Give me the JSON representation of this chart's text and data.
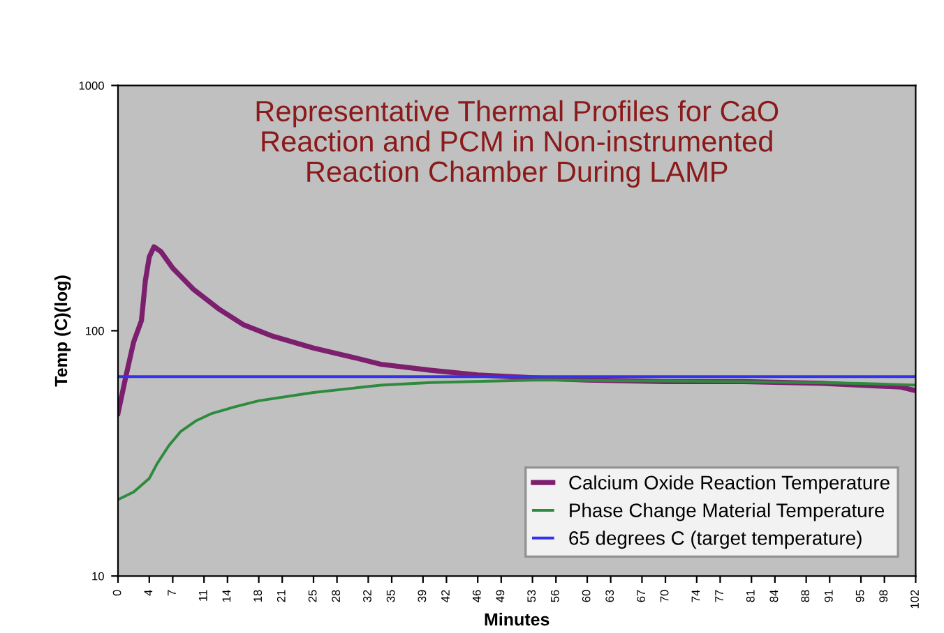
{
  "chart_data": {
    "type": "line",
    "title": "Representative Thermal Profiles for CaO\nReaction and PCM in Non-instrumented\nReaction Chamber During LAMP",
    "xlabel": "Minutes",
    "ylabel": "Temp (C)(log)",
    "log": "y",
    "ylim": [
      10,
      1000
    ],
    "yticks": [
      10,
      100,
      1000
    ],
    "xlim": [
      0,
      102
    ],
    "xticks": [
      0,
      4,
      7,
      11,
      14,
      18,
      21,
      25,
      28,
      32,
      35,
      39,
      42,
      46,
      49,
      53,
      56,
      60,
      63,
      67,
      70,
      74,
      77,
      81,
      84,
      88,
      91,
      95,
      98,
      102
    ],
    "legend": "bottom right",
    "grid": false,
    "series": [
      {
        "name": "Calcium Oxide Reaction Temperature",
        "color": "#7b1f6e",
        "x": [
          0,
          1,
          2,
          3,
          3.5,
          4,
          4.6,
          5.5,
          7,
          9.6,
          13,
          16,
          19.8,
          25,
          30,
          33.6,
          40,
          46,
          54.3,
          60,
          70,
          80,
          90,
          100,
          102
        ],
        "values": [
          46,
          65,
          90,
          110,
          160,
          200,
          220,
          210,
          180,
          148,
          122,
          106,
          95,
          85,
          78,
          73,
          69,
          66,
          64,
          63,
          62,
          62,
          61,
          59,
          57
        ]
      },
      {
        "name": "Phase Change Material Temperature",
        "color": "#2e8b3e",
        "x": [
          0,
          2,
          4,
          5,
          6.5,
          8,
          10,
          12,
          15,
          18,
          25,
          33.6,
          40,
          54,
          65,
          80,
          95,
          102
        ],
        "values": [
          20.5,
          22,
          25,
          28.7,
          34,
          38.8,
          43,
          46,
          49,
          51.8,
          56,
          60,
          61.5,
          63,
          62.5,
          62,
          61,
          60
        ]
      },
      {
        "name": "65 degrees C (target temperature)",
        "color": "#3333ee",
        "x": [
          0,
          102
        ],
        "values": [
          65,
          65
        ]
      }
    ]
  }
}
